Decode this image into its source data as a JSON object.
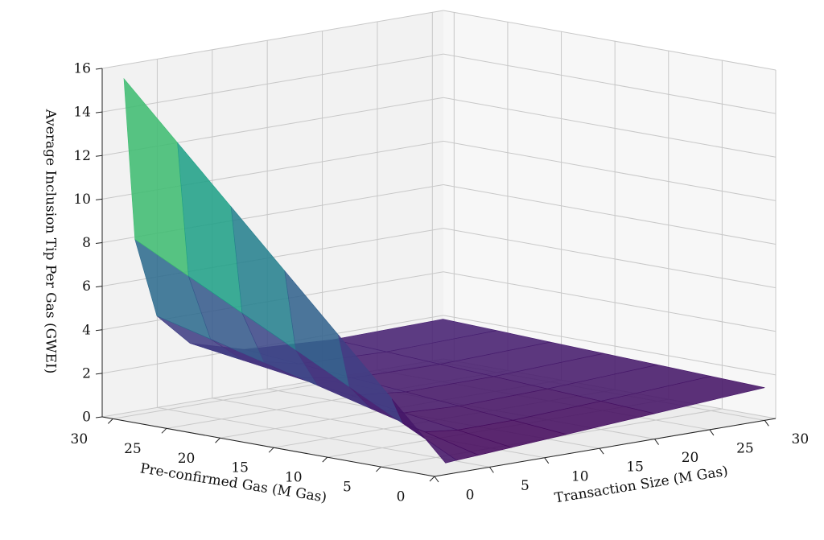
{
  "chart_data": {
    "type": "surface",
    "xlabel": "Transaction Size (M Gas)",
    "ylabel": "Pre-confirmed Gas (M Gas)",
    "zlabel": "Average Inclusion Tip Per Gas (GWEI)",
    "colormap": "viridis",
    "x": [
      1,
      2,
      4,
      7,
      12,
      20,
      30
    ],
    "y": [
      0,
      5,
      10,
      15,
      20,
      25,
      30
    ],
    "z": [
      [
        0.53,
        0.57,
        0.63,
        0.73,
        0.9,
        1.17,
        1.5
      ],
      [
        3.03,
        1.82,
        1.26,
        1.09,
        1.11,
        1.3,
        1.58
      ],
      [
        5.53,
        3.07,
        1.88,
        1.44,
        1.32,
        1.42,
        1.67
      ],
      [
        8.03,
        4.32,
        2.51,
        1.8,
        1.53,
        1.55,
        1.75
      ],
      [
        10.53,
        5.57,
        3.13,
        2.16,
        1.73,
        1.67,
        1.83
      ],
      [
        13.03,
        6.82,
        3.76,
        2.52,
        1.94,
        1.8,
        1.92
      ],
      [
        15.53,
        8.07,
        4.38,
        2.87,
        2.15,
        1.92,
        2.0
      ]
    ],
    "xlim": [
      0,
      31
    ],
    "ylim": [
      0,
      31
    ],
    "zlim": [
      0,
      16
    ],
    "xticks": [
      0,
      5,
      10,
      15,
      20,
      25,
      30
    ],
    "yticks": [
      0,
      5,
      10,
      15,
      20,
      25,
      30
    ],
    "zticks": [
      0,
      2,
      4,
      6,
      8,
      10,
      12,
      14,
      16
    ],
    "grid": true
  }
}
